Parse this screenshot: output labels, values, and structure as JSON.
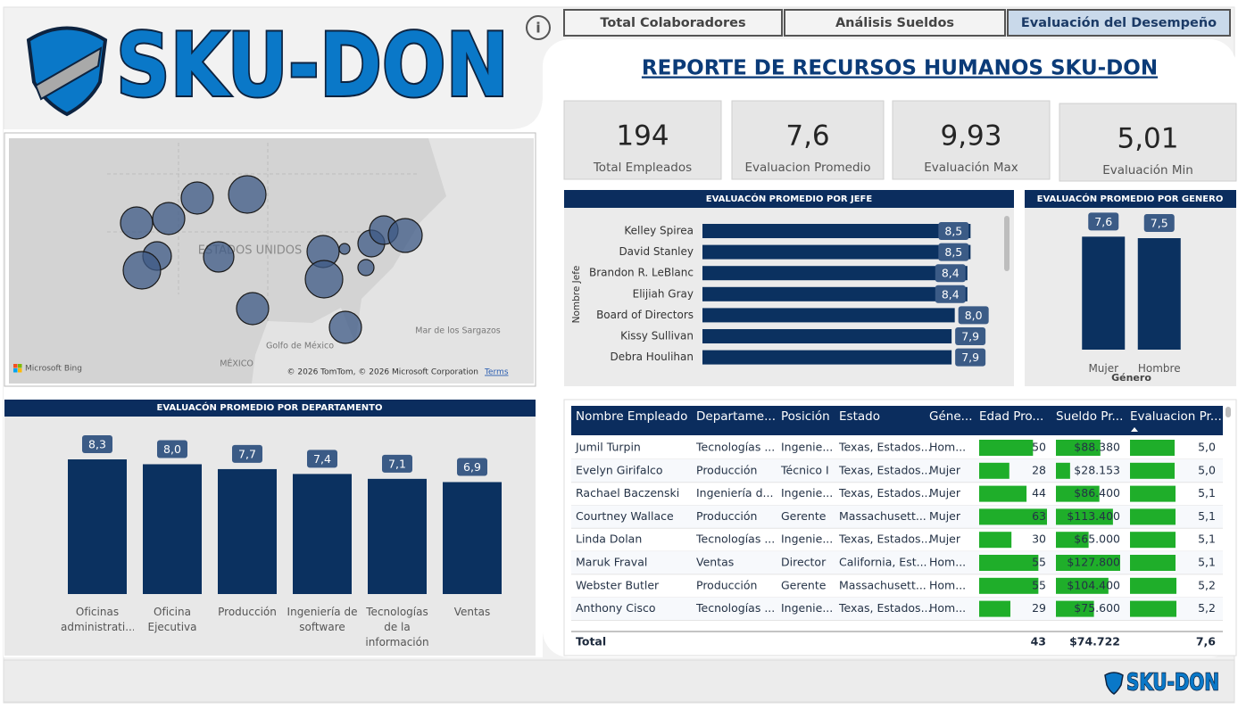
{
  "header": {
    "logo_text": "SKU-DON",
    "info_icon": "i",
    "title": "REPORTE DE RECURSOS HUMANOS SKU-DON"
  },
  "tabs": [
    "Total Colaboradores",
    "Análisis Sueldos",
    "Evaluación del Desempeño"
  ],
  "kpis": [
    {
      "value": "194",
      "label": "Total Empleados"
    },
    {
      "value": "7,6",
      "label": "Evaluacion Promedio"
    },
    {
      "value": "9,93",
      "label": "Evaluación Max"
    },
    {
      "value": "5,01",
      "label": "Evaluación Min"
    }
  ],
  "map": {
    "country_label": "ESTADOS UNIDOS",
    "gulf_label": "Golfo de México",
    "sea_label": "Mar de los Sargazos",
    "mexico_label": "MÉXICO",
    "bing": "Microsoft Bing",
    "copyright": "© 2026 TomTom, © 2026 Microsoft Corporation",
    "terms": "Terms"
  },
  "chart_data": [
    {
      "type": "bar",
      "orientation": "horizontal",
      "title": "EVALUACÓN PROMEDIO POR JEFE",
      "y_label": "Nombre Jefe",
      "categories": [
        "Kelley Spirea",
        "David Stanley",
        "Brandon R. LeBlanc",
        "Elijiah Gray",
        "Board of Directors",
        "Kissy Sullivan",
        "Debra Houlihan"
      ],
      "values": [
        8.5,
        8.5,
        8.4,
        8.4,
        8.0,
        7.9,
        7.9
      ],
      "value_labels": [
        "8,5",
        "8,5",
        "8,4",
        "8,4",
        "8,0",
        "7,9",
        "7,9"
      ],
      "xlim": [
        0,
        9
      ],
      "color": "#0b3160"
    },
    {
      "type": "bar",
      "orientation": "vertical",
      "title": "EVALUACÓN PROMEDIO POR GENERO",
      "x_label": "Género",
      "categories": [
        "Mujer",
        "Hombre"
      ],
      "values": [
        7.6,
        7.5
      ],
      "value_labels": [
        "7,6",
        "7,5"
      ],
      "ylim": [
        0,
        9.6
      ],
      "color": "#0b3160"
    },
    {
      "type": "bar",
      "orientation": "vertical",
      "title": "EVALUACÓN PROMEDIO POR DEPARTAMENTO",
      "categories": [
        "Oficinas administrati...",
        "Oficina Ejecutiva",
        "Producción",
        "Ingeniería de software",
        "Tecnologías de la información",
        "Ventas"
      ],
      "values": [
        8.3,
        8.0,
        7.7,
        7.4,
        7.1,
        6.9
      ],
      "value_labels": [
        "8,3",
        "8,0",
        "7,7",
        "7,4",
        "7,1",
        "6,9"
      ],
      "ylim": [
        0,
        10.5
      ],
      "color": "#0b3160"
    }
  ],
  "table": {
    "columns": [
      "Nombre Empleado",
      "Departame...",
      "Posición",
      "Estado",
      "Géne...",
      "Edad Pro...",
      "Sueldo Pr...",
      "Evaluacion Pr..."
    ],
    "rows": [
      {
        "name": "Jumil Turpin",
        "dept": "Tecnologías ...",
        "pos": "Ingenie...",
        "estado": "Texas, Estados...",
        "genero": "Hom...",
        "edad": 50,
        "sueldo": 88380,
        "sueldo_label": "$88.380",
        "eval": 5.0,
        "eval_label": "5,0"
      },
      {
        "name": "Evelyn Girifalco",
        "dept": "Producción",
        "pos": "Técnico I",
        "estado": "Texas, Estados...",
        "genero": "Mujer",
        "edad": 28,
        "sueldo": 28153,
        "sueldo_label": "$28.153",
        "eval": 5.0,
        "eval_label": "5,0"
      },
      {
        "name": "Rachael Baczenski",
        "dept": "Ingeniería d...",
        "pos": "Ingenie...",
        "estado": "Texas, Estados...",
        "genero": "Mujer",
        "edad": 44,
        "sueldo": 86400,
        "sueldo_label": "$86.400",
        "eval": 5.1,
        "eval_label": "5,1"
      },
      {
        "name": "Courtney Wallace",
        "dept": "Producción",
        "pos": "Gerente",
        "estado": "Massachusett...",
        "genero": "Mujer",
        "edad": 63,
        "sueldo": 113400,
        "sueldo_label": "$113.400",
        "eval": 5.1,
        "eval_label": "5,1"
      },
      {
        "name": "Linda Dolan",
        "dept": "Tecnologías ...",
        "pos": "Ingenie...",
        "estado": "Texas, Estados...",
        "genero": "Mujer",
        "edad": 30,
        "sueldo": 65000,
        "sueldo_label": "$65.000",
        "eval": 5.1,
        "eval_label": "5,1"
      },
      {
        "name": "Maruk Fraval",
        "dept": "Ventas",
        "pos": "Director",
        "estado": "California, Est...",
        "genero": "Hom...",
        "edad": 55,
        "sueldo": 127800,
        "sueldo_label": "$127.800",
        "eval": 5.1,
        "eval_label": "5,1"
      },
      {
        "name": "Webster Butler",
        "dept": "Producción",
        "pos": "Gerente",
        "estado": "Massachusett...",
        "genero": "Hom...",
        "edad": 55,
        "sueldo": 104400,
        "sueldo_label": "$104.400",
        "eval": 5.2,
        "eval_label": "5,2"
      },
      {
        "name": "Anthony Cisco",
        "dept": "Tecnologías ...",
        "pos": "Ingenie...",
        "estado": "Texas, Estados...",
        "genero": "Hom...",
        "edad": 29,
        "sueldo": 75600,
        "sueldo_label": "$75.600",
        "eval": 5.2,
        "eval_label": "5,2"
      }
    ],
    "total": {
      "label": "Total",
      "edad": "43",
      "sueldo": "$74.722",
      "eval": "7,6"
    }
  }
}
